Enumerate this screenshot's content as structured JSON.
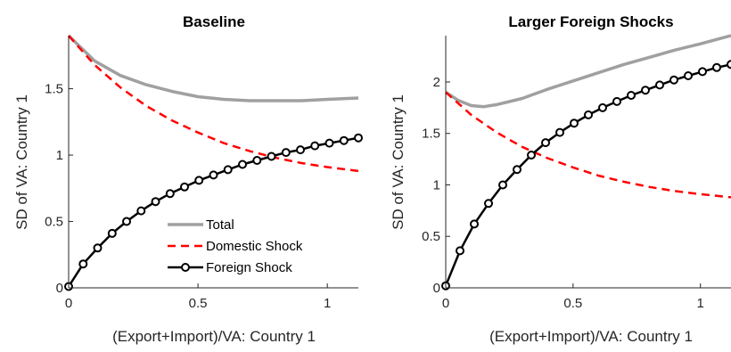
{
  "chart_data": [
    {
      "type": "line",
      "title": "Baseline",
      "xlabel": "(Export+Import)/VA: Country 1",
      "ylabel": "SD of VA: Country 1",
      "xlim": [
        0,
        1.12
      ],
      "ylim": [
        0,
        1.9
      ],
      "xticks": [
        0,
        0.5,
        1
      ],
      "xtick_labels": [
        "0",
        "0.5",
        "1"
      ],
      "yticks": [
        0,
        0.5,
        1,
        1.5
      ],
      "ytick_labels": [
        "0",
        "0.5",
        "1",
        "1.5"
      ],
      "legend": {
        "position": "bottom-center",
        "entries": [
          "Total",
          "Domestic Shock",
          "Foreign Shock"
        ]
      },
      "series": [
        {
          "name": "Total",
          "color": "#a0a0a0",
          "style": "solid",
          "x": [
            0,
            0.1,
            0.2,
            0.3,
            0.4,
            0.5,
            0.6,
            0.7,
            0.8,
            0.9,
            1.0,
            1.12
          ],
          "y": [
            1.9,
            1.71,
            1.6,
            1.53,
            1.48,
            1.44,
            1.42,
            1.41,
            1.41,
            1.41,
            1.42,
            1.43
          ]
        },
        {
          "name": "Domestic Shock",
          "color": "#ff0000",
          "style": "dashed",
          "x": [
            0,
            0.1,
            0.2,
            0.3,
            0.4,
            0.5,
            0.6,
            0.7,
            0.8,
            0.9,
            1.0,
            1.12
          ],
          "y": [
            1.9,
            1.68,
            1.51,
            1.37,
            1.26,
            1.17,
            1.09,
            1.03,
            0.98,
            0.94,
            0.91,
            0.88
          ]
        },
        {
          "name": "Foreign Shock",
          "color": "#000000",
          "style": "solid-marker",
          "x": [
            0,
            0.056,
            0.112,
            0.168,
            0.224,
            0.28,
            0.336,
            0.392,
            0.448,
            0.504,
            0.56,
            0.616,
            0.672,
            0.728,
            0.784,
            0.84,
            0.896,
            0.952,
            1.008,
            1.064,
            1.12
          ],
          "y": [
            0.01,
            0.18,
            0.3,
            0.41,
            0.5,
            0.58,
            0.65,
            0.71,
            0.76,
            0.81,
            0.85,
            0.89,
            0.93,
            0.96,
            0.99,
            1.02,
            1.04,
            1.07,
            1.09,
            1.11,
            1.13
          ]
        }
      ]
    },
    {
      "type": "line",
      "title": "Larger Foreign Shocks",
      "xlabel": "(Export+Import)/VA: Country 1",
      "ylabel": "SD of VA: Country 1",
      "xlim": [
        0,
        1.12
      ],
      "ylim": [
        0,
        2.45
      ],
      "xticks": [
        0,
        0.5,
        1
      ],
      "xtick_labels": [
        "0",
        "0.5",
        "1"
      ],
      "yticks": [
        0,
        0.5,
        1,
        1.5,
        2
      ],
      "ytick_labels": [
        "0",
        "0.5",
        "1",
        "1.5",
        "2"
      ],
      "series": [
        {
          "name": "Total",
          "color": "#a0a0a0",
          "style": "solid",
          "x": [
            0,
            0.05,
            0.1,
            0.15,
            0.2,
            0.3,
            0.4,
            0.5,
            0.6,
            0.7,
            0.8,
            0.9,
            1.0,
            1.12
          ],
          "y": [
            1.9,
            1.82,
            1.77,
            1.76,
            1.78,
            1.84,
            1.93,
            2.01,
            2.09,
            2.17,
            2.24,
            2.31,
            2.37,
            2.45
          ]
        },
        {
          "name": "Domestic Shock",
          "color": "#ff0000",
          "style": "dashed",
          "x": [
            0,
            0.1,
            0.2,
            0.3,
            0.4,
            0.5,
            0.6,
            0.7,
            0.8,
            0.9,
            1.0,
            1.12
          ],
          "y": [
            1.9,
            1.68,
            1.51,
            1.37,
            1.26,
            1.17,
            1.09,
            1.03,
            0.98,
            0.94,
            0.91,
            0.88
          ]
        },
        {
          "name": "Foreign Shock",
          "color": "#000000",
          "style": "solid-marker",
          "x": [
            0,
            0.056,
            0.112,
            0.168,
            0.224,
            0.28,
            0.336,
            0.392,
            0.448,
            0.504,
            0.56,
            0.616,
            0.672,
            0.728,
            0.784,
            0.84,
            0.896,
            0.952,
            1.008,
            1.064,
            1.12
          ],
          "y": [
            0.02,
            0.36,
            0.62,
            0.82,
            1.0,
            1.15,
            1.29,
            1.41,
            1.51,
            1.6,
            1.68,
            1.75,
            1.81,
            1.87,
            1.92,
            1.97,
            2.02,
            2.06,
            2.1,
            2.14,
            2.17
          ]
        }
      ]
    }
  ]
}
